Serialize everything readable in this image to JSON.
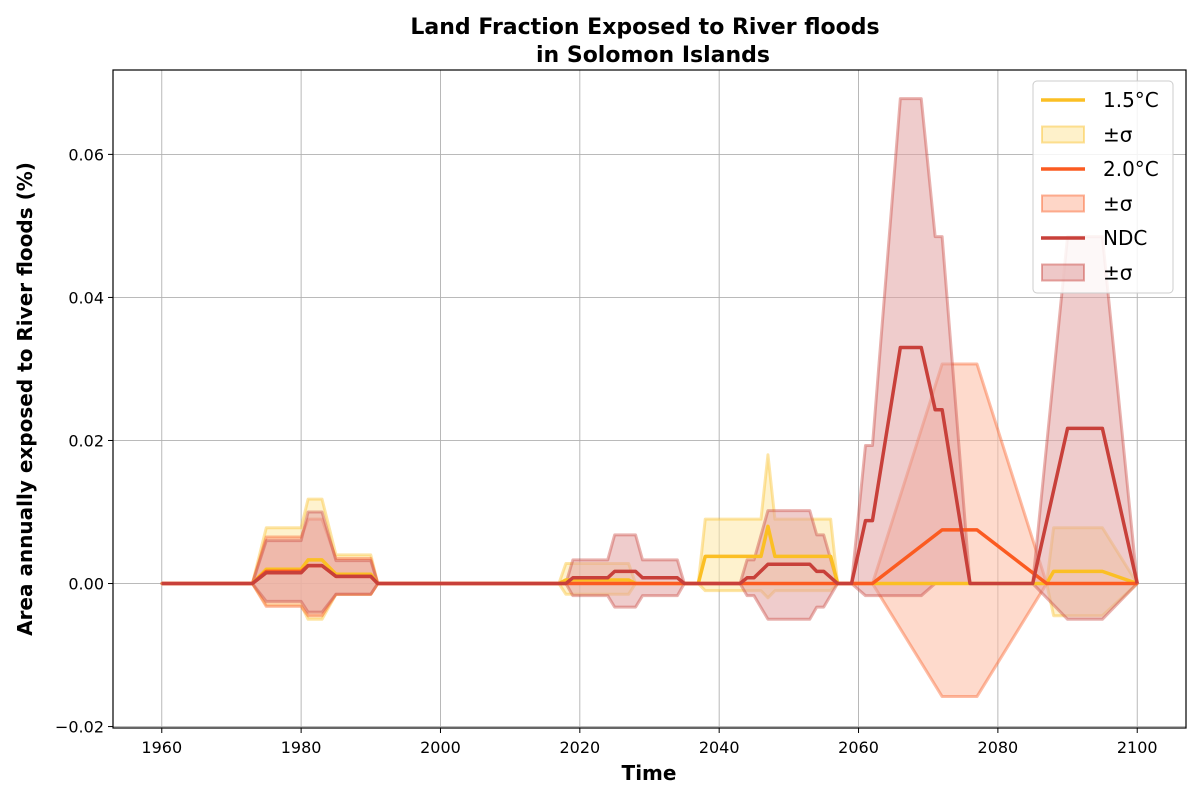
{
  "chart_data": {
    "type": "line",
    "title": [
      "Land Fraction Exposed to River floods",
      "in Solomon Islands"
    ],
    "xlabel": "Time",
    "ylabel": "Area annually exposed to River floods (%)",
    "xlim": [
      1953,
      2107
    ],
    "ylim": [
      -0.0202,
      0.0718
    ],
    "xticks": [
      1960,
      1980,
      2000,
      2020,
      2040,
      2060,
      2080,
      2100
    ],
    "yticks": [
      -0.02,
      0.0,
      0.02,
      0.04,
      0.06
    ],
    "ytick_labels": [
      "−0.02",
      "0.00",
      "0.02",
      "0.04",
      "0.06"
    ],
    "grid": true,
    "legend_position": "top-right",
    "series": [
      {
        "name": "1.5°C",
        "band_label": "±σ",
        "color": "#fbbf24",
        "band_color": "#fde7a6",
        "mean": [
          [
            1960,
            0
          ],
          [
            1973,
            0
          ],
          [
            1975,
            0.002
          ],
          [
            1980,
            0.002
          ],
          [
            1981,
            0.0033
          ],
          [
            1983,
            0.0033
          ],
          [
            1985,
            0.0013
          ],
          [
            1990,
            0.0013
          ],
          [
            1991,
            0
          ],
          [
            2017,
            0
          ],
          [
            2018,
            0.0005
          ],
          [
            2027,
            0.0005
          ],
          [
            2028,
            0
          ],
          [
            2037,
            0
          ],
          [
            2038,
            0.0038
          ],
          [
            2046,
            0.0038
          ],
          [
            2047,
            0.008
          ],
          [
            2048,
            0.0038
          ],
          [
            2056,
            0.0038
          ],
          [
            2057,
            0
          ],
          [
            2087,
            0
          ],
          [
            2088,
            0.0017
          ],
          [
            2095,
            0.0017
          ],
          [
            2100,
            0
          ]
        ],
        "upper": [
          [
            1960,
            0
          ],
          [
            1973,
            0
          ],
          [
            1975,
            0.0078
          ],
          [
            1980,
            0.0078
          ],
          [
            1981,
            0.0118
          ],
          [
            1983,
            0.0118
          ],
          [
            1985,
            0.004
          ],
          [
            1990,
            0.004
          ],
          [
            1991,
            0
          ],
          [
            2017,
            0
          ],
          [
            2018,
            0.0028
          ],
          [
            2027,
            0.0028
          ],
          [
            2028,
            0
          ],
          [
            2037,
            0
          ],
          [
            2038,
            0.009
          ],
          [
            2046,
            0.009
          ],
          [
            2047,
            0.018
          ],
          [
            2048,
            0.009
          ],
          [
            2056,
            0.009
          ],
          [
            2057,
            0
          ],
          [
            2087,
            0
          ],
          [
            2088,
            0.0078
          ],
          [
            2095,
            0.0078
          ],
          [
            2100,
            0
          ]
        ],
        "lower": [
          [
            1960,
            0
          ],
          [
            1973,
            0
          ],
          [
            1975,
            -0.003
          ],
          [
            1980,
            -0.003
          ],
          [
            1981,
            -0.005
          ],
          [
            1983,
            -0.005
          ],
          [
            1985,
            -0.0015
          ],
          [
            1990,
            -0.0015
          ],
          [
            1991,
            0
          ],
          [
            2017,
            0
          ],
          [
            2018,
            -0.0015
          ],
          [
            2027,
            -0.0015
          ],
          [
            2028,
            0
          ],
          [
            2037,
            0
          ],
          [
            2038,
            -0.001
          ],
          [
            2046,
            -0.001
          ],
          [
            2047,
            -0.002
          ],
          [
            2048,
            -0.001
          ],
          [
            2056,
            -0.001
          ],
          [
            2057,
            0
          ],
          [
            2087,
            0
          ],
          [
            2088,
            -0.0045
          ],
          [
            2095,
            -0.0045
          ],
          [
            2100,
            0
          ]
        ]
      },
      {
        "name": "2.0°C",
        "band_label": "±σ",
        "color": "#fb5b21",
        "band_color": "#fdbba2",
        "mean": [
          [
            1960,
            0
          ],
          [
            1973,
            0
          ],
          [
            1975,
            0.0017
          ],
          [
            1980,
            0.0017
          ],
          [
            1981,
            0.0025
          ],
          [
            1983,
            0.0025
          ],
          [
            1985,
            0.001
          ],
          [
            1990,
            0.001
          ],
          [
            1991,
            0
          ],
          [
            2062,
            0
          ],
          [
            2072,
            0.0075
          ],
          [
            2077,
            0.0075
          ],
          [
            2087,
            0
          ],
          [
            2100,
            0
          ]
        ],
        "upper": [
          [
            1960,
            0
          ],
          [
            1973,
            0
          ],
          [
            1975,
            0.0065
          ],
          [
            1980,
            0.0065
          ],
          [
            1981,
            0.009
          ],
          [
            1983,
            0.009
          ],
          [
            1985,
            0.0035
          ],
          [
            1990,
            0.0035
          ],
          [
            1991,
            0
          ],
          [
            2062,
            0
          ],
          [
            2072,
            0.0307
          ],
          [
            2077,
            0.0307
          ],
          [
            2087,
            0
          ],
          [
            2100,
            0
          ]
        ],
        "lower": [
          [
            1960,
            0
          ],
          [
            1973,
            0
          ],
          [
            1975,
            -0.0032
          ],
          [
            1980,
            -0.0032
          ],
          [
            1981,
            -0.0045
          ],
          [
            1983,
            -0.0045
          ],
          [
            1985,
            -0.0015
          ],
          [
            1990,
            -0.0015
          ],
          [
            1991,
            0
          ],
          [
            2062,
            0
          ],
          [
            2072,
            -0.0158
          ],
          [
            2077,
            -0.0158
          ],
          [
            2087,
            0
          ],
          [
            2100,
            0
          ]
        ]
      },
      {
        "name": "NDC",
        "band_label": "±σ",
        "color": "#c8403a",
        "band_color": "#e2a3a3",
        "mean": [
          [
            1960,
            0
          ],
          [
            1973,
            0
          ],
          [
            1975,
            0.0015
          ],
          [
            1980,
            0.0015
          ],
          [
            1981,
            0.0025
          ],
          [
            1983,
            0.0025
          ],
          [
            1985,
            0.001
          ],
          [
            1990,
            0.001
          ],
          [
            1991,
            0
          ],
          [
            2018,
            0
          ],
          [
            2019,
            0.0008
          ],
          [
            2024,
            0.0008
          ],
          [
            2025,
            0.0017
          ],
          [
            2028,
            0.0017
          ],
          [
            2029,
            0.0008
          ],
          [
            2034,
            0.0008
          ],
          [
            2035,
            0
          ],
          [
            2043,
            0
          ],
          [
            2044,
            0.0008
          ],
          [
            2045,
            0.0008
          ],
          [
            2047,
            0.0027
          ],
          [
            2053,
            0.0027
          ],
          [
            2054,
            0.0017
          ],
          [
            2055,
            0.0017
          ],
          [
            2057,
            0
          ],
          [
            2059,
            0
          ],
          [
            2061,
            0.0088
          ],
          [
            2062,
            0.0088
          ],
          [
            2066,
            0.033
          ],
          [
            2069,
            0.033
          ],
          [
            2071,
            0.0243
          ],
          [
            2072,
            0.0243
          ],
          [
            2076,
            0
          ],
          [
            2085,
            0
          ],
          [
            2090,
            0.0217
          ],
          [
            2095,
            0.0217
          ],
          [
            2100,
            0
          ]
        ],
        "upper": [
          [
            1960,
            0
          ],
          [
            1973,
            0
          ],
          [
            1975,
            0.006
          ],
          [
            1980,
            0.006
          ],
          [
            1981,
            0.01
          ],
          [
            1983,
            0.01
          ],
          [
            1985,
            0.0032
          ],
          [
            1990,
            0.0032
          ],
          [
            1991,
            0
          ],
          [
            2018,
            0
          ],
          [
            2019,
            0.0033
          ],
          [
            2024,
            0.0033
          ],
          [
            2025,
            0.0068
          ],
          [
            2028,
            0.0068
          ],
          [
            2029,
            0.0033
          ],
          [
            2034,
            0.0033
          ],
          [
            2035,
            0
          ],
          [
            2043,
            0
          ],
          [
            2044,
            0.0033
          ],
          [
            2045,
            0.0033
          ],
          [
            2047,
            0.0102
          ],
          [
            2053,
            0.0102
          ],
          [
            2054,
            0.0068
          ],
          [
            2055,
            0.0068
          ],
          [
            2057,
            0
          ],
          [
            2059,
            0
          ],
          [
            2061,
            0.0193
          ],
          [
            2062,
            0.0193
          ],
          [
            2066,
            0.0678
          ],
          [
            2069,
            0.0678
          ],
          [
            2071,
            0.0485
          ],
          [
            2072,
            0.0485
          ],
          [
            2076,
            0
          ],
          [
            2085,
            0
          ],
          [
            2090,
            0.0485
          ],
          [
            2095,
            0.0485
          ],
          [
            2100,
            0
          ]
        ],
        "lower": [
          [
            1960,
            0
          ],
          [
            1973,
            0
          ],
          [
            1975,
            -0.0025
          ],
          [
            1980,
            -0.0025
          ],
          [
            1981,
            -0.004
          ],
          [
            1983,
            -0.004
          ],
          [
            1985,
            -0.0015
          ],
          [
            1990,
            -0.0015
          ],
          [
            1991,
            0
          ],
          [
            2018,
            0
          ],
          [
            2019,
            -0.0017
          ],
          [
            2024,
            -0.0017
          ],
          [
            2025,
            -0.0033
          ],
          [
            2028,
            -0.0033
          ],
          [
            2029,
            -0.0017
          ],
          [
            2034,
            -0.0017
          ],
          [
            2035,
            0
          ],
          [
            2043,
            0
          ],
          [
            2044,
            -0.0017
          ],
          [
            2045,
            -0.0017
          ],
          [
            2047,
            -0.005
          ],
          [
            2053,
            -0.005
          ],
          [
            2054,
            -0.0033
          ],
          [
            2055,
            -0.0033
          ],
          [
            2057,
            0
          ],
          [
            2059,
            0
          ],
          [
            2061,
            -0.0017
          ],
          [
            2062,
            -0.0017
          ],
          [
            2066,
            -0.0017
          ],
          [
            2069,
            -0.0017
          ],
          [
            2071,
            0
          ],
          [
            2072,
            0
          ],
          [
            2076,
            0
          ],
          [
            2085,
            0
          ],
          [
            2090,
            -0.005
          ],
          [
            2095,
            -0.005
          ],
          [
            2100,
            0
          ]
        ]
      }
    ]
  }
}
